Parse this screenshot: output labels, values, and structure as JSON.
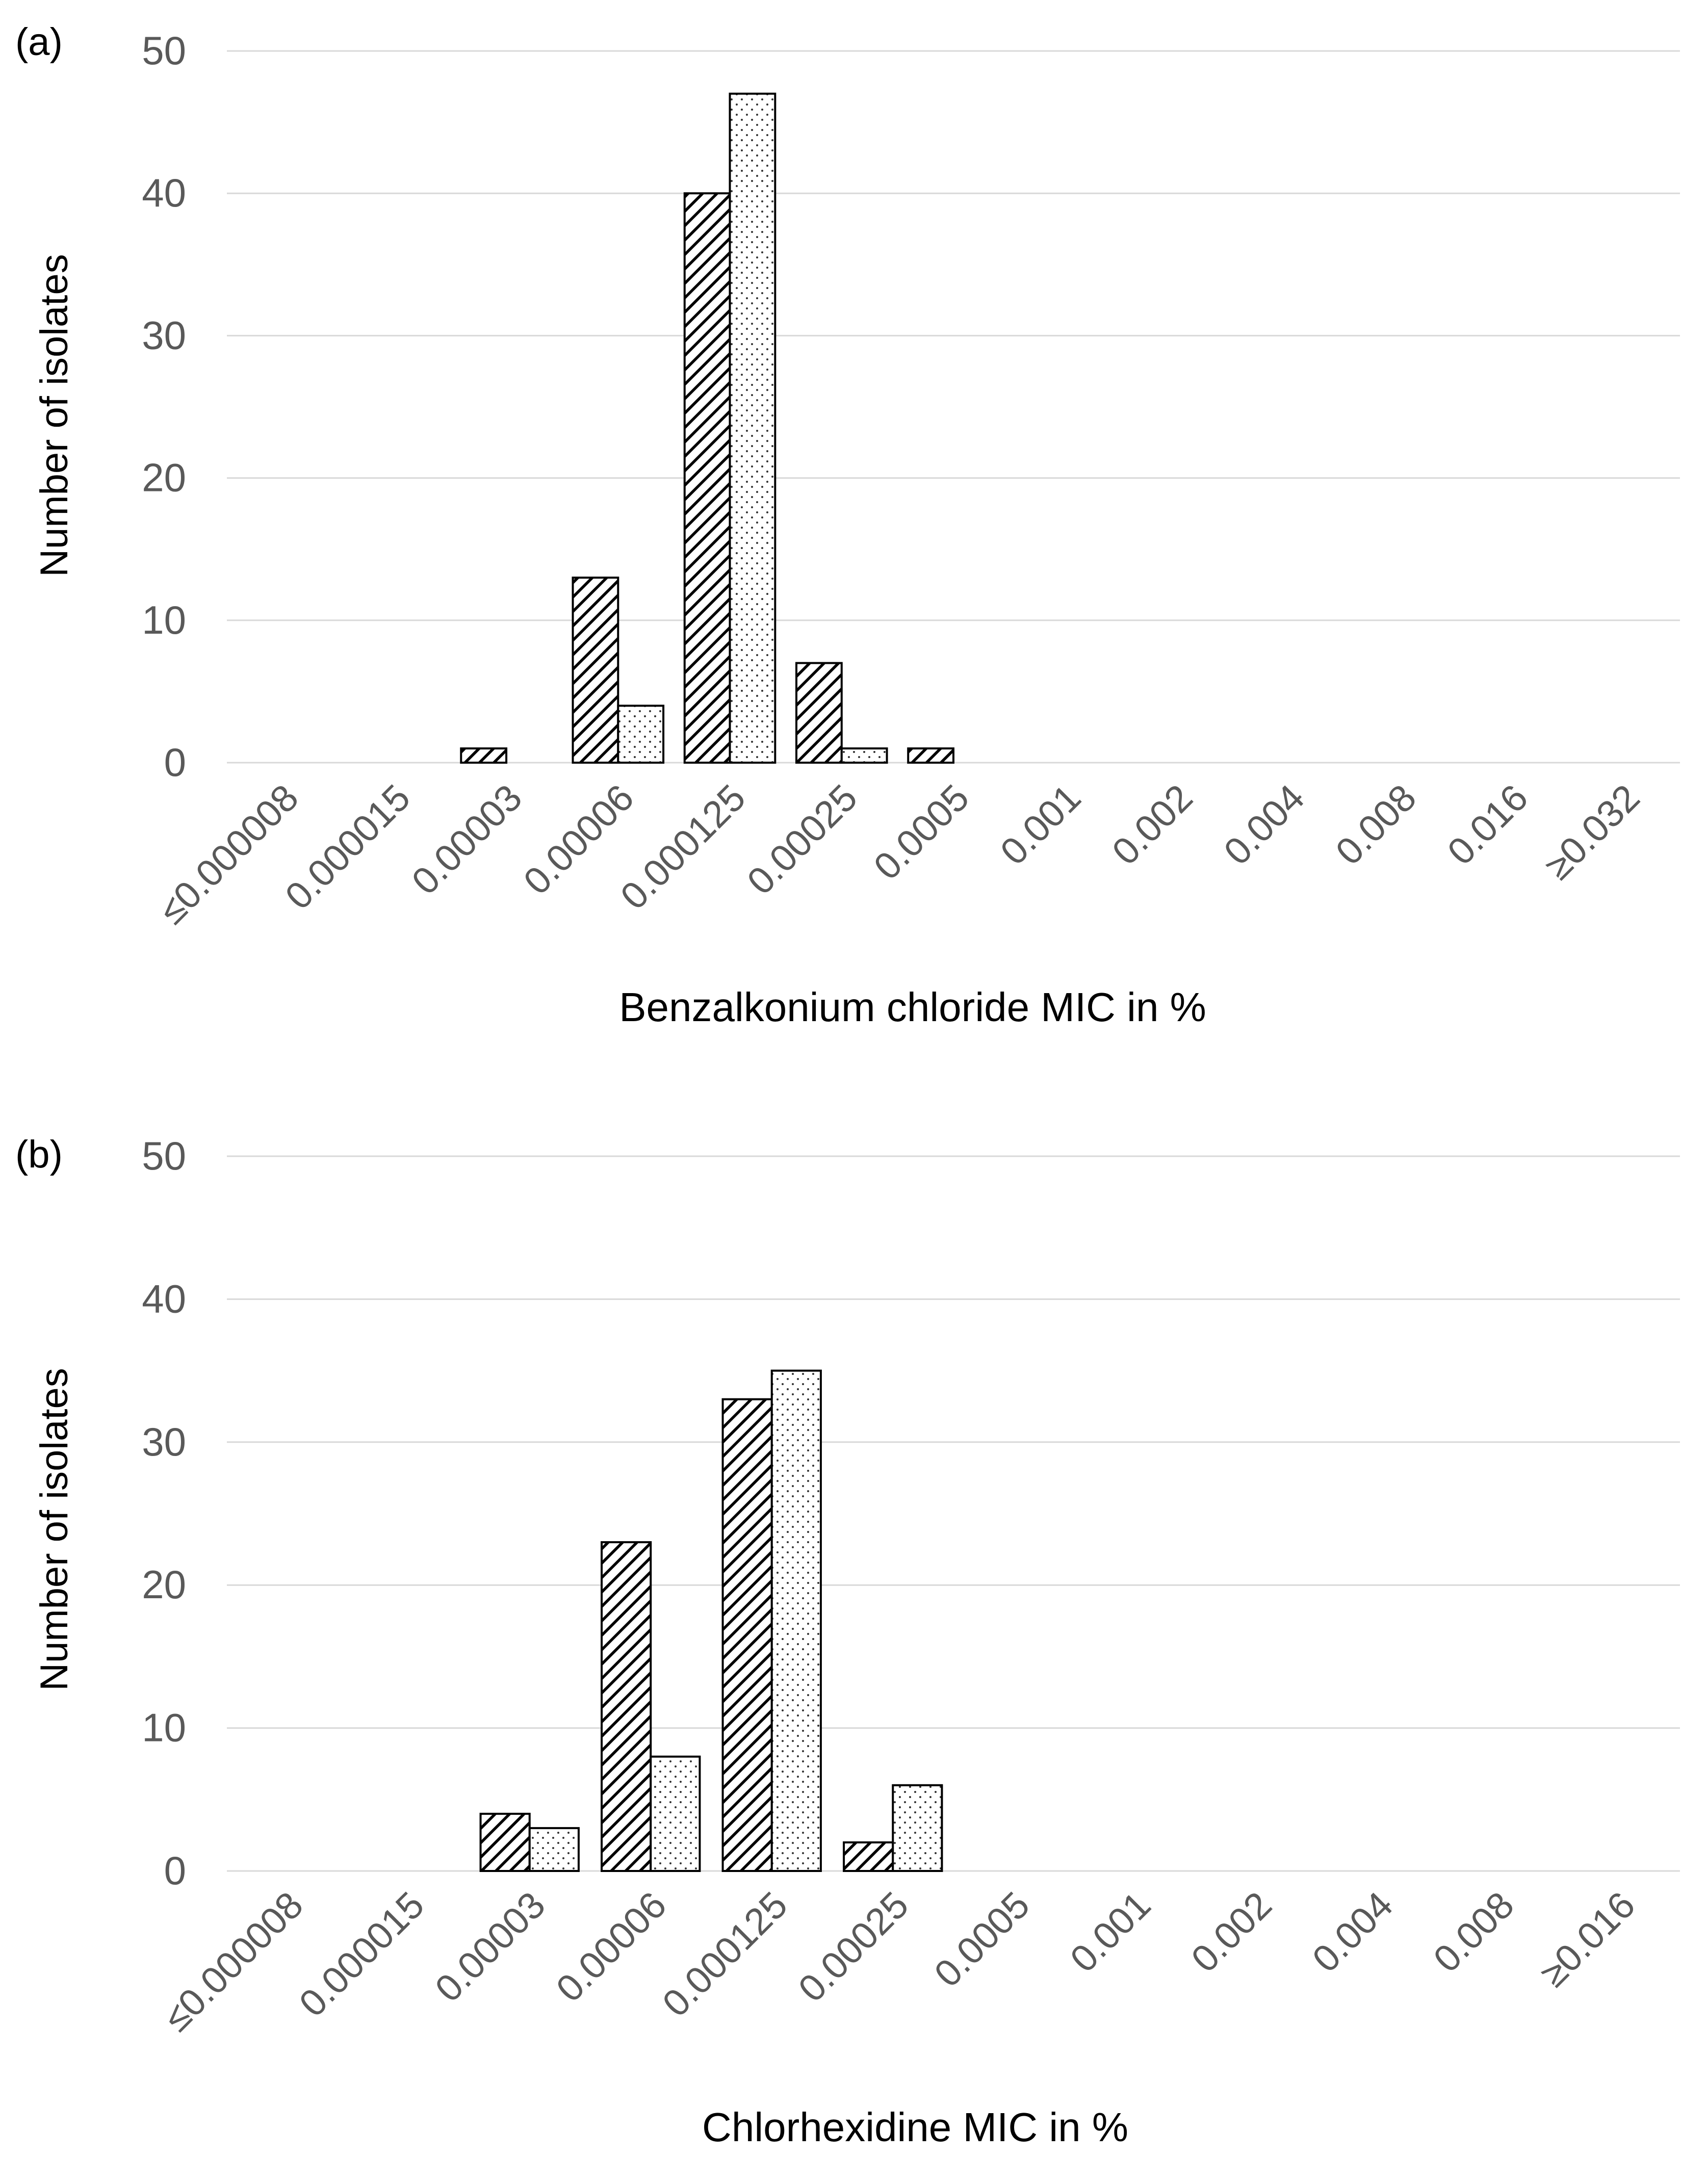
{
  "chart_data": [
    {
      "type": "bar",
      "panel_label": "(a)",
      "title": "",
      "xlabel": "Benzalkonium chloride MIC in %",
      "ylabel": "Number of isolates",
      "ylim": [
        0,
        50
      ],
      "yticks": [
        "0",
        "10",
        "20",
        "30",
        "40",
        "50"
      ],
      "grid": true,
      "legend": "none",
      "categories": [
        "≤0.000008",
        "0.000015",
        "0.00003",
        "0.00006",
        "0.000125",
        "0.00025",
        "0.0005",
        "0.001",
        "0.002",
        "0.004",
        "0.008",
        "0.016",
        "≥0.032"
      ],
      "series": [
        {
          "name": "Series 1 (hatched)",
          "pattern": "diagonal-hatch",
          "values": [
            0,
            0,
            1,
            13,
            40,
            7,
            1,
            0,
            0,
            0,
            0,
            0,
            0
          ]
        },
        {
          "name": "Series 2 (dotted)",
          "pattern": "dots",
          "values": [
            0,
            0,
            0,
            4,
            47,
            1,
            0,
            0,
            0,
            0,
            0,
            0,
            0
          ]
        }
      ]
    },
    {
      "type": "bar",
      "panel_label": "(b)",
      "title": "",
      "xlabel": "Chlorhexidine MIC in %",
      "ylabel": "Number of isolates",
      "ylim": [
        0,
        50
      ],
      "yticks": [
        "0",
        "10",
        "20",
        "30",
        "40",
        "50"
      ],
      "grid": true,
      "legend": "none",
      "categories": [
        "≤0.000008",
        "0.000015",
        "0.00003",
        "0.00006",
        "0.000125",
        "0.00025",
        "0.0005",
        "0.001",
        "0.002",
        "0.004",
        "0.008",
        "≥0.016"
      ],
      "series": [
        {
          "name": "Series 1 (hatched)",
          "pattern": "diagonal-hatch",
          "values": [
            0,
            0,
            4,
            23,
            33,
            2,
            0,
            0,
            0,
            0,
            0,
            0
          ]
        },
        {
          "name": "Series 2 (dotted)",
          "pattern": "dots",
          "values": [
            0,
            0,
            3,
            8,
            35,
            6,
            0,
            0,
            0,
            0,
            0,
            0
          ]
        }
      ]
    }
  ],
  "colors": {
    "grid": "#d9d9d9",
    "tick_text": "#595959",
    "label_text": "#000000",
    "bar_stroke": "#000000",
    "bar_fill": "#ffffff"
  }
}
